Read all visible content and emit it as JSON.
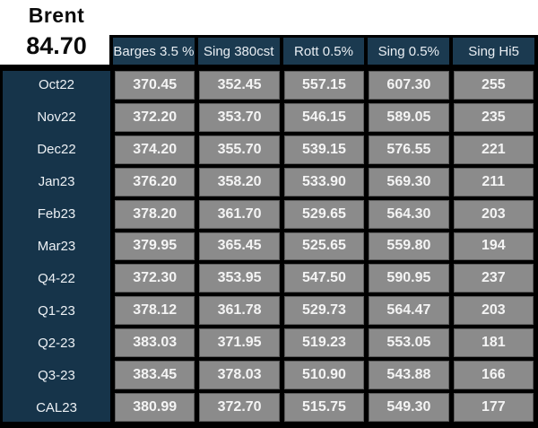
{
  "benchmark": {
    "name": "Brent",
    "price": "84.70"
  },
  "chart_data": {
    "type": "table",
    "columns": [
      "Barges 3.5 %",
      "Sing 380cst",
      "Rott 0.5%",
      "Sing 0.5%",
      "Sing Hi5"
    ],
    "row_labels": [
      "Oct22",
      "Nov22",
      "Dec22",
      "Jan23",
      "Feb23",
      "Mar23",
      "Q4-22",
      "Q1-23",
      "Q2-23",
      "Q3-23",
      "CAL23"
    ],
    "rows": [
      [
        "370.45",
        "352.45",
        "557.15",
        "607.30",
        "255"
      ],
      [
        "372.20",
        "353.70",
        "546.15",
        "589.05",
        "235"
      ],
      [
        "374.20",
        "355.70",
        "539.15",
        "576.55",
        "221"
      ],
      [
        "376.20",
        "358.20",
        "533.90",
        "569.30",
        "211"
      ],
      [
        "378.20",
        "361.70",
        "529.65",
        "564.30",
        "203"
      ],
      [
        "379.95",
        "365.45",
        "525.65",
        "559.80",
        "194"
      ],
      [
        "372.30",
        "353.95",
        "547.50",
        "590.95",
        "237"
      ],
      [
        "378.12",
        "361.78",
        "529.73",
        "564.47",
        "203"
      ],
      [
        "383.03",
        "371.95",
        "519.23",
        "553.05",
        "181"
      ],
      [
        "383.45",
        "378.03",
        "510.90",
        "543.88",
        "166"
      ],
      [
        "380.99",
        "372.70",
        "515.75",
        "549.30",
        "177"
      ]
    ]
  },
  "colors": {
    "header_bg": "#1b3a50",
    "label_bg": "#16344a",
    "cell_bg": "#8b8b8b",
    "cell_border": "#5e5e5e",
    "grid_lines": "#000000",
    "header_text": "#e9eef3",
    "cell_text": "#f4f4f4",
    "benchmark_text": "#0b0b0b",
    "page_bg": "#ffffff"
  }
}
